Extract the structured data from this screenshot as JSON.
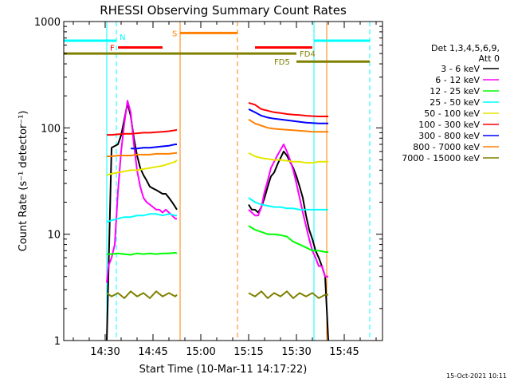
{
  "chart_data": {
    "type": "line",
    "title": "RHESSI Observing Summary Count Rates",
    "xlabel": "Start Time (10-Mar-11 14:17:22)",
    "ylabel": "Count Rate (s⁻¹ detector⁻¹)",
    "yscale": "log",
    "ylim": [
      1,
      1000
    ],
    "xlim_minutes": [
      0,
      100
    ],
    "x_unit": "minutes after 14:17:22",
    "y_ticks": [
      "1",
      "10",
      "100",
      "1000"
    ],
    "x_ticks": [
      {
        "label": "14:30",
        "value": 13
      },
      {
        "label": "14:45",
        "value": 28
      },
      {
        "label": "15:00",
        "value": 43
      },
      {
        "label": "15:15",
        "value": 58
      },
      {
        "label": "15:30",
        "value": 73
      },
      {
        "label": "15:45",
        "value": 88
      }
    ],
    "legend_header": [
      "Det 1,3,4,5,6,9,",
      "Att 0"
    ],
    "legend_position": "right",
    "date_stamp": "15-Oct-2021 10:11",
    "series": [
      {
        "name": "3 - 6 keV",
        "color": "#000000",
        "segments": [
          {
            "x": [
              13.5,
              15,
              17,
              18,
              19,
              20,
              21,
              22,
              23,
              24,
              25,
              26,
              27,
              28,
              29,
              30,
              31,
              32,
              33,
              34,
              35,
              35.5
            ],
            "y": [
              1,
              65,
              70,
              85,
              120,
              170,
              130,
              80,
              55,
              42,
              36,
              32,
              28,
              27,
              26,
              25,
              24,
              24,
              22,
              20,
              18,
              17
            ]
          },
          {
            "x": [
              58,
              59,
              60,
              61,
              62,
              63,
              64,
              65,
              66,
              67,
              68,
              69,
              70,
              71,
              72,
              73,
              74,
              75,
              76,
              77,
              78,
              79,
              80,
              81,
              82,
              83
            ],
            "y": [
              19,
              17,
              17,
              16,
              18,
              22,
              28,
              35,
              38,
              45,
              52,
              60,
              55,
              48,
              42,
              35,
              28,
              22,
              15,
              11,
              9,
              7,
              6,
              5,
              4,
              1
            ]
          }
        ]
      },
      {
        "name": "6 - 12 keV",
        "color": "#ff00ff",
        "segments": [
          {
            "x": [
              13.5,
              14,
              15,
              16,
              17,
              18,
              19,
              20,
              21,
              22,
              23,
              24,
              25,
              26,
              27,
              28,
              29,
              30,
              31,
              32,
              33,
              34,
              35,
              35.5
            ],
            "y": [
              3.5,
              5,
              6,
              8,
              25,
              60,
              110,
              180,
              140,
              70,
              40,
              28,
              22,
              20,
              19,
              18,
              17,
              17,
              16,
              17,
              16,
              15,
              14,
              14
            ]
          },
          {
            "x": [
              58,
              59,
              60,
              61,
              62,
              63,
              64,
              65,
              66,
              67,
              68,
              69,
              70,
              71,
              72,
              73,
              74,
              75,
              76,
              77,
              78,
              79,
              80,
              81,
              82,
              83
            ],
            "y": [
              17,
              16,
              15,
              15,
              18,
              25,
              32,
              42,
              48,
              55,
              62,
              70,
              60,
              50,
              40,
              30,
              22,
              16,
              12,
              9,
              7,
              6,
              5,
              5,
              4,
              4
            ]
          }
        ]
      },
      {
        "name": "12 - 25 keV",
        "color": "#00ff00",
        "segments": [
          {
            "x": [
              13.5,
              15,
              17,
              19,
              21,
              23,
              25,
              27,
              29,
              31,
              33,
              35,
              35.5
            ],
            "y": [
              6.5,
              6.5,
              6.6,
              6.5,
              6.4,
              6.6,
              6.5,
              6.6,
              6.5,
              6.6,
              6.6,
              6.7,
              6.6
            ]
          },
          {
            "x": [
              58,
              60,
              62,
              64,
              66,
              68,
              70,
              72,
              74,
              76,
              78,
              80,
              82,
              83
            ],
            "y": [
              12,
              11,
              10.5,
              10,
              10,
              9.8,
              9.5,
              8.5,
              8,
              7.5,
              7,
              7,
              6.8,
              6.8
            ]
          }
        ]
      },
      {
        "name": "25 - 50 keV",
        "color": "#00ffff",
        "segments": [
          {
            "x": [
              13.5,
              15,
              17,
              19,
              21,
              23,
              25,
              27,
              29,
              31,
              33,
              35,
              35.5
            ],
            "y": [
              13,
              13.5,
              14,
              14.5,
              14.5,
              15,
              15,
              15.5,
              15.5,
              15,
              15.5,
              15,
              15
            ]
          },
          {
            "x": [
              58,
              60,
              62,
              64,
              66,
              68,
              70,
              72,
              74,
              76,
              78,
              80,
              82,
              83
            ],
            "y": [
              22,
              20,
              19,
              18.5,
              18,
              18,
              17.5,
              17.5,
              17,
              17,
              17,
              17,
              17,
              17
            ]
          }
        ]
      },
      {
        "name": "50 - 100 keV",
        "color": "#e6e600",
        "segments": [
          {
            "x": [
              13.5,
              15,
              17,
              19,
              21,
              23,
              25,
              27,
              29,
              31,
              33,
              35,
              35.5
            ],
            "y": [
              36,
              37,
              38,
              39,
              40,
              40,
              41,
              42,
              43,
              44,
              46,
              48,
              50
            ]
          },
          {
            "x": [
              58,
              60,
              62,
              64,
              66,
              68,
              70,
              72,
              74,
              76,
              78,
              80,
              82,
              83
            ],
            "y": [
              58,
              54,
              52,
              51,
              50,
              50,
              49,
              48,
              48,
              47,
              47,
              48,
              48,
              48
            ]
          }
        ]
      },
      {
        "name": "100 - 300 keV",
        "color": "#ff0000",
        "segments": [
          {
            "x": [
              13.5,
              15,
              17,
              19,
              21,
              23,
              25,
              27,
              29,
              31,
              33,
              35,
              35.5
            ],
            "y": [
              86,
              86,
              87,
              88,
              88,
              89,
              90,
              90,
              91,
              92,
              93,
              95,
              96
            ]
          },
          {
            "x": [
              58,
              60,
              62,
              64,
              66,
              68,
              70,
              72,
              74,
              76,
              78,
              80,
              82,
              83
            ],
            "y": [
              172,
              165,
              150,
              145,
              140,
              138,
              135,
              133,
              132,
              130,
              129,
              128,
              128,
              128
            ]
          }
        ]
      },
      {
        "name": "300 - 800 keV",
        "color": "#0000ff",
        "segments": [
          {
            "x": [
              21,
              23,
              25,
              27,
              29,
              31,
              33,
              35,
              35.5
            ],
            "y": [
              64,
              64,
              65,
              65,
              66,
              67,
              68,
              70,
              70
            ]
          },
          {
            "x": [
              58,
              60,
              62,
              64,
              66,
              68,
              70,
              72,
              74,
              76,
              78,
              80,
              82,
              83
            ],
            "y": [
              150,
              140,
              130,
              125,
              122,
              120,
              118,
              116,
              114,
              112,
              111,
              110,
              110,
              110
            ]
          }
        ]
      },
      {
        "name": "800 - 7000 keV",
        "color": "#ff8000",
        "segments": [
          {
            "x": [
              13.5,
              15,
              17,
              19,
              21,
              23,
              25,
              27,
              29,
              31,
              33,
              35,
              35.5
            ],
            "y": [
              54,
              54,
              55,
              55,
              55,
              56,
              56,
              56,
              57,
              57,
              57,
              58,
              58
            ]
          },
          {
            "x": [
              58,
              60,
              62,
              64,
              66,
              68,
              70,
              72,
              74,
              76,
              78,
              80,
              82,
              83
            ],
            "y": [
              120,
              110,
              105,
              100,
              98,
              97,
              96,
              95,
              94,
              93,
              92,
              92,
              92,
              92
            ]
          }
        ]
      },
      {
        "name": "7000 - 15000 keV",
        "color": "#808000",
        "segments": [
          {
            "x": [
              13.5,
              15,
              17,
              19,
              21,
              23,
              25,
              27,
              29,
              31,
              33,
              35,
              35.5
            ],
            "y": [
              2.8,
              2.6,
              2.8,
              2.5,
              2.9,
              2.6,
              2.8,
              2.5,
              2.9,
              2.6,
              2.8,
              2.6,
              2.7
            ]
          },
          {
            "x": [
              58,
              60,
              62,
              64,
              66,
              68,
              70,
              72,
              74,
              76,
              78,
              80,
              82,
              83
            ],
            "y": [
              2.8,
              2.6,
              2.9,
              2.5,
              2.8,
              2.6,
              2.9,
              2.5,
              2.8,
              2.6,
              2.8,
              2.5,
              2.7,
              2.7
            ]
          }
        ]
      }
    ],
    "flag_bars": [
      {
        "label": "",
        "color": "#00ffff",
        "start": 0,
        "end": 16.5,
        "y": 660
      },
      {
        "label": "N",
        "color": "#00ffff",
        "start": 16.5,
        "end": 16.5,
        "y": 720
      },
      {
        "label": "F",
        "color": "#ff0000",
        "start": 17,
        "end": 31,
        "y": 570
      },
      {
        "label": "S",
        "color": "#ff8000",
        "start": 36.5,
        "end": 54.5,
        "y": 780
      },
      {
        "label": "",
        "color": "#ff0000",
        "start": 60,
        "end": 78,
        "y": 570
      },
      {
        "label": "",
        "color": "#00ffff",
        "start": 78.5,
        "end": 96,
        "y": 660
      },
      {
        "label": "FD4",
        "color": "#808000",
        "start": 0,
        "end": 73,
        "y": 500
      },
      {
        "label": "FD5",
        "color": "#808000",
        "start": 73,
        "end": 96,
        "y": 420
      }
    ],
    "vertical_markers": [
      {
        "x": 0,
        "color": "#00ffff",
        "style": "solid"
      },
      {
        "x": 13.5,
        "color": "#00ffff",
        "style": "solid"
      },
      {
        "x": 16.5,
        "color": "#00ffff",
        "style": "dashed"
      },
      {
        "x": 36.5,
        "color": "#ff8000",
        "style": "solid"
      },
      {
        "x": 54.5,
        "color": "#ff8000",
        "style": "dashed"
      },
      {
        "x": 78.5,
        "color": "#00ffff",
        "style": "solid"
      },
      {
        "x": 82.5,
        "color": "#ff8000",
        "style": "solid"
      },
      {
        "x": 96,
        "color": "#00ffff",
        "style": "dashed"
      }
    ]
  }
}
